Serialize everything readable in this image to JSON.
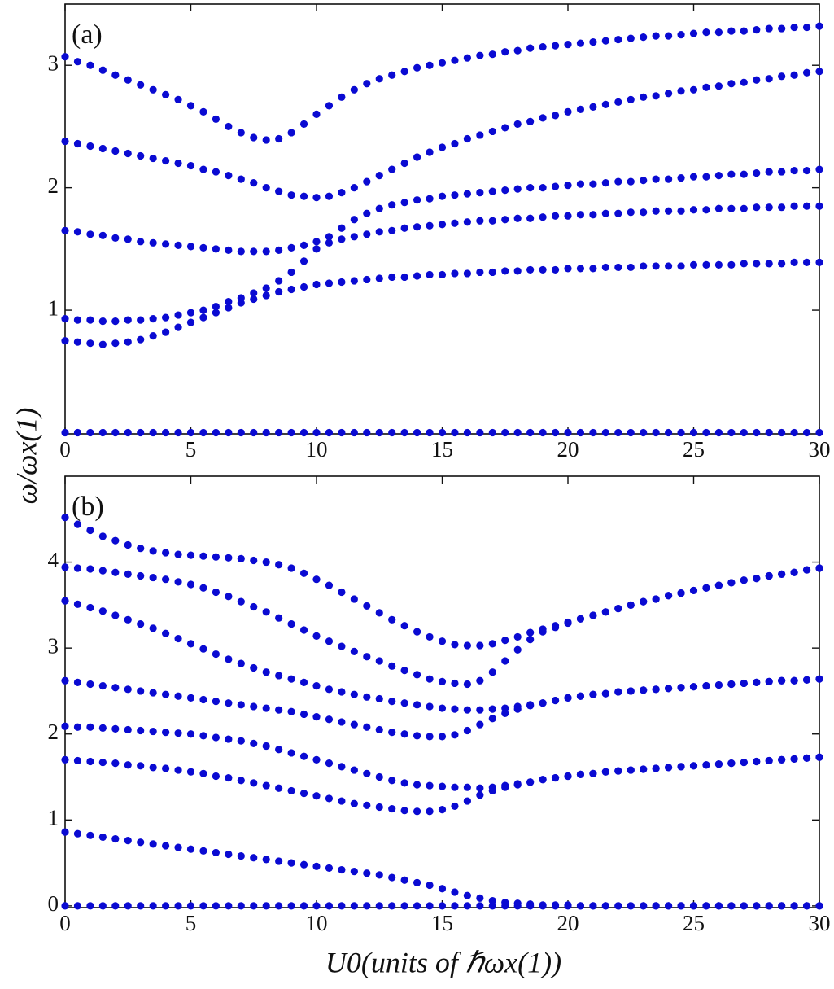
{
  "chart_data": [
    {
      "type": "scatter",
      "panel_label": "(a)",
      "ylabel": "ω/ωx(1)",
      "x": [
        0,
        0.5,
        1,
        1.5,
        2,
        2.5,
        3,
        3.5,
        4,
        4.5,
        5,
        5.5,
        6,
        6.5,
        7,
        7.5,
        8,
        8.5,
        9,
        9.5,
        10,
        10.5,
        11,
        11.5,
        12,
        12.5,
        13,
        13.5,
        14,
        14.5,
        15,
        15.5,
        16,
        16.5,
        17,
        17.5,
        18,
        18.5,
        19,
        19.5,
        20,
        20.5,
        21,
        21.5,
        22,
        22.5,
        23,
        23.5,
        24,
        24.5,
        25,
        25.5,
        26,
        26.5,
        27,
        27.5,
        28,
        28.5,
        29,
        29.5,
        30
      ],
      "series": [
        {
          "color": "#0a0ad2",
          "values": [
            0,
            0,
            0,
            0,
            0,
            0,
            0,
            0,
            0,
            0,
            0,
            0,
            0,
            0,
            0,
            0,
            0,
            0,
            0,
            0,
            0,
            0,
            0,
            0,
            0,
            0,
            0,
            0,
            0,
            0,
            0,
            0,
            0,
            0,
            0,
            0,
            0,
            0,
            0,
            0,
            0,
            0,
            0,
            0,
            0,
            0,
            0,
            0,
            0,
            0,
            0,
            0,
            0,
            0,
            0,
            0,
            0,
            0,
            0,
            0,
            0
          ]
        },
        {
          "color": "#0a0ad2",
          "values": [
            0.75,
            0.74,
            0.73,
            0.72,
            0.73,
            0.74,
            0.76,
            0.79,
            0.82,
            0.86,
            0.9,
            0.94,
            0.98,
            1.02,
            1.06,
            1.09,
            1.12,
            1.15,
            1.17,
            1.19,
            1.21,
            1.22,
            1.23,
            1.24,
            1.25,
            1.26,
            1.27,
            1.27,
            1.28,
            1.29,
            1.29,
            1.3,
            1.3,
            1.31,
            1.31,
            1.32,
            1.32,
            1.33,
            1.33,
            1.33,
            1.34,
            1.34,
            1.34,
            1.35,
            1.35,
            1.35,
            1.36,
            1.36,
            1.36,
            1.36,
            1.37,
            1.37,
            1.37,
            1.37,
            1.38,
            1.38,
            1.38,
            1.38,
            1.39,
            1.39,
            1.39
          ]
        },
        {
          "color": "#0a0ad2",
          "values": [
            0.93,
            0.92,
            0.92,
            0.91,
            0.91,
            0.92,
            0.92,
            0.93,
            0.94,
            0.96,
            0.98,
            1.0,
            1.03,
            1.07,
            1.1,
            1.14,
            1.18,
            1.24,
            1.31,
            1.4,
            1.5,
            1.55,
            1.58,
            1.6,
            1.62,
            1.64,
            1.65,
            1.67,
            1.68,
            1.69,
            1.7,
            1.71,
            1.72,
            1.73,
            1.73,
            1.74,
            1.75,
            1.75,
            1.76,
            1.77,
            1.77,
            1.78,
            1.78,
            1.79,
            1.79,
            1.8,
            1.8,
            1.81,
            1.81,
            1.81,
            1.82,
            1.82,
            1.83,
            1.83,
            1.83,
            1.84,
            1.84,
            1.84,
            1.85,
            1.85,
            1.85
          ]
        },
        {
          "color": "#0a0ad2",
          "values": [
            1.65,
            1.64,
            1.62,
            1.61,
            1.59,
            1.58,
            1.56,
            1.55,
            1.54,
            1.53,
            1.52,
            1.51,
            1.5,
            1.49,
            1.48,
            1.48,
            1.48,
            1.49,
            1.51,
            1.53,
            1.56,
            1.6,
            1.67,
            1.74,
            1.79,
            1.83,
            1.86,
            1.88,
            1.9,
            1.91,
            1.93,
            1.94,
            1.95,
            1.96,
            1.97,
            1.98,
            1.99,
            2.0,
            2.0,
            2.01,
            2.02,
            2.03,
            2.03,
            2.04,
            2.05,
            2.05,
            2.06,
            2.07,
            2.07,
            2.08,
            2.09,
            2.09,
            2.1,
            2.11,
            2.11,
            2.12,
            2.13,
            2.13,
            2.14,
            2.14,
            2.15
          ]
        },
        {
          "color": "#0a0ad2",
          "values": [
            2.38,
            2.36,
            2.34,
            2.32,
            2.3,
            2.28,
            2.26,
            2.24,
            2.22,
            2.2,
            2.18,
            2.15,
            2.13,
            2.1,
            2.07,
            2.04,
            2.0,
            1.97,
            1.94,
            1.93,
            1.92,
            1.93,
            1.96,
            2.0,
            2.05,
            2.1,
            2.15,
            2.2,
            2.25,
            2.29,
            2.33,
            2.36,
            2.4,
            2.43,
            2.46,
            2.49,
            2.52,
            2.54,
            2.57,
            2.59,
            2.62,
            2.64,
            2.66,
            2.68,
            2.7,
            2.72,
            2.74,
            2.75,
            2.77,
            2.79,
            2.8,
            2.82,
            2.83,
            2.85,
            2.86,
            2.88,
            2.89,
            2.91,
            2.92,
            2.94,
            2.95
          ]
        },
        {
          "color": "#0a0ad2",
          "values": [
            3.07,
            3.03,
            3.0,
            2.96,
            2.92,
            2.88,
            2.84,
            2.8,
            2.76,
            2.72,
            2.67,
            2.62,
            2.56,
            2.5,
            2.45,
            2.41,
            2.39,
            2.4,
            2.45,
            2.52,
            2.6,
            2.67,
            2.74,
            2.8,
            2.85,
            2.89,
            2.92,
            2.95,
            2.98,
            3.0,
            3.02,
            3.04,
            3.06,
            3.08,
            3.09,
            3.11,
            3.12,
            3.14,
            3.15,
            3.16,
            3.17,
            3.18,
            3.19,
            3.2,
            3.21,
            3.22,
            3.23,
            3.24,
            3.24,
            3.25,
            3.26,
            3.27,
            3.27,
            3.28,
            3.28,
            3.29,
            3.3,
            3.3,
            3.31,
            3.31,
            3.32
          ]
        }
      ],
      "xlim": [
        0,
        30
      ],
      "ylim": [
        -0.01,
        3.5
      ],
      "xticks": [
        0,
        5,
        10,
        15,
        20,
        25,
        30
      ],
      "yticks": [
        1,
        2,
        3
      ]
    },
    {
      "type": "scatter",
      "panel_label": "(b)",
      "xlabel": "U0(units of ℏωx(1))",
      "x": [
        0,
        0.5,
        1,
        1.5,
        2,
        2.5,
        3,
        3.5,
        4,
        4.5,
        5,
        5.5,
        6,
        6.5,
        7,
        7.5,
        8,
        8.5,
        9,
        9.5,
        10,
        10.5,
        11,
        11.5,
        12,
        12.5,
        13,
        13.5,
        14,
        14.5,
        15,
        15.5,
        16,
        16.5,
        17,
        17.5,
        18,
        18.5,
        19,
        19.5,
        20,
        20.5,
        21,
        21.5,
        22,
        22.5,
        23,
        23.5,
        24,
        24.5,
        25,
        25.5,
        26,
        26.5,
        27,
        27.5,
        28,
        28.5,
        29,
        29.5,
        30
      ],
      "series": [
        {
          "color": "#0a0ad2",
          "values": [
            0,
            0,
            0,
            0,
            0,
            0,
            0,
            0,
            0,
            0,
            0,
            0,
            0,
            0,
            0,
            0,
            0,
            0,
            0,
            0,
            0,
            0,
            0,
            0,
            0,
            0,
            0,
            0,
            0,
            0,
            0,
            0,
            0,
            0,
            0,
            0,
            0,
            0,
            0,
            0,
            0,
            0,
            0,
            0,
            0,
            0,
            0,
            0,
            0,
            0,
            0,
            0,
            0,
            0,
            0,
            0,
            0,
            0,
            0,
            0,
            0
          ]
        },
        {
          "color": "#0a0ad2",
          "values": [
            0.86,
            0.84,
            0.82,
            0.8,
            0.78,
            0.76,
            0.74,
            0.72,
            0.7,
            0.68,
            0.66,
            0.64,
            0.62,
            0.6,
            0.58,
            0.56,
            0.54,
            0.52,
            0.5,
            0.48,
            0.46,
            0.44,
            0.42,
            0.4,
            0.38,
            0.36,
            0.33,
            0.3,
            0.27,
            0.24,
            0.2,
            0.16,
            0.12,
            0.09,
            0.06,
            0.04,
            0.03,
            0.02,
            0.01,
            0.01,
            0.01,
            0,
            0,
            0,
            0,
            0,
            0,
            0,
            0,
            0,
            0,
            0,
            0,
            0,
            0,
            0,
            0,
            0,
            0,
            0,
            0
          ]
        },
        {
          "color": "#0a0ad2",
          "values": [
            1.7,
            1.69,
            1.68,
            1.67,
            1.66,
            1.64,
            1.63,
            1.61,
            1.6,
            1.58,
            1.56,
            1.54,
            1.51,
            1.49,
            1.46,
            1.43,
            1.4,
            1.37,
            1.34,
            1.31,
            1.28,
            1.25,
            1.22,
            1.19,
            1.17,
            1.15,
            1.13,
            1.11,
            1.1,
            1.1,
            1.12,
            1.16,
            1.22,
            1.29,
            1.34,
            1.38,
            1.41,
            1.44,
            1.47,
            1.49,
            1.51,
            1.53,
            1.54,
            1.56,
            1.57,
            1.58,
            1.59,
            1.6,
            1.61,
            1.62,
            1.63,
            1.64,
            1.65,
            1.66,
            1.67,
            1.68,
            1.69,
            1.7,
            1.71,
            1.72,
            1.73
          ]
        },
        {
          "color": "#0a0ad2",
          "values": [
            2.09,
            2.08,
            2.08,
            2.07,
            2.06,
            2.05,
            2.04,
            2.03,
            2.02,
            2.01,
            2.0,
            1.98,
            1.96,
            1.94,
            1.92,
            1.89,
            1.86,
            1.82,
            1.78,
            1.74,
            1.7,
            1.66,
            1.62,
            1.58,
            1.54,
            1.5,
            1.46,
            1.43,
            1.41,
            1.4,
            1.39,
            1.38,
            1.38,
            1.37,
            1.38,
            1.4,
            1.42,
            1.44,
            1.47,
            1.49,
            1.51,
            1.53,
            1.54,
            1.56,
            1.57,
            1.58,
            1.59,
            1.6,
            1.61,
            1.62,
            1.63,
            1.64,
            1.65,
            1.66,
            1.67,
            1.68,
            1.69,
            1.7,
            1.71,
            1.72,
            1.73
          ]
        },
        {
          "color": "#0a0ad2",
          "values": [
            2.62,
            2.6,
            2.58,
            2.56,
            2.54,
            2.52,
            2.5,
            2.48,
            2.46,
            2.44,
            2.42,
            2.4,
            2.38,
            2.36,
            2.34,
            2.32,
            2.3,
            2.28,
            2.26,
            2.23,
            2.2,
            2.17,
            2.14,
            2.11,
            2.08,
            2.05,
            2.02,
            2.0,
            1.98,
            1.97,
            1.97,
            1.99,
            2.04,
            2.11,
            2.18,
            2.24,
            2.29,
            2.33,
            2.36,
            2.39,
            2.42,
            2.44,
            2.46,
            2.47,
            2.49,
            2.5,
            2.51,
            2.52,
            2.53,
            2.54,
            2.55,
            2.56,
            2.57,
            2.58,
            2.59,
            2.6,
            2.61,
            2.62,
            2.62,
            2.63,
            2.64
          ]
        },
        {
          "color": "#0a0ad2",
          "values": [
            3.55,
            3.51,
            3.47,
            3.43,
            3.38,
            3.33,
            3.28,
            3.23,
            3.17,
            3.11,
            3.05,
            2.99,
            2.93,
            2.87,
            2.82,
            2.77,
            2.72,
            2.68,
            2.64,
            2.6,
            2.56,
            2.52,
            2.49,
            2.46,
            2.43,
            2.41,
            2.38,
            2.36,
            2.34,
            2.32,
            2.3,
            2.29,
            2.28,
            2.28,
            2.29,
            2.3,
            2.32,
            2.34,
            2.36,
            2.39,
            2.42,
            2.44,
            2.46,
            2.47,
            2.49,
            2.5,
            2.51,
            2.52,
            2.53,
            2.54,
            2.55,
            2.56,
            2.57,
            2.58,
            2.59,
            2.6,
            2.61,
            2.62,
            2.62,
            2.63,
            2.64
          ]
        },
        {
          "color": "#0a0ad2",
          "values": [
            3.94,
            3.93,
            3.92,
            3.9,
            3.88,
            3.86,
            3.84,
            3.82,
            3.8,
            3.77,
            3.74,
            3.7,
            3.65,
            3.6,
            3.54,
            3.48,
            3.42,
            3.35,
            3.28,
            3.21,
            3.14,
            3.08,
            3.02,
            2.96,
            2.9,
            2.85,
            2.79,
            2.74,
            2.69,
            2.64,
            2.61,
            2.59,
            2.58,
            2.62,
            2.72,
            2.85,
            2.98,
            3.1,
            3.19,
            3.24,
            3.29,
            3.34,
            3.38,
            3.42,
            3.46,
            3.5,
            3.54,
            3.57,
            3.61,
            3.64,
            3.67,
            3.7,
            3.73,
            3.76,
            3.79,
            3.81,
            3.84,
            3.86,
            3.88,
            3.91,
            3.93
          ]
        },
        {
          "color": "#0a0ad2",
          "values": [
            4.52,
            4.44,
            4.37,
            4.3,
            4.25,
            4.2,
            4.16,
            4.13,
            4.11,
            4.09,
            4.08,
            4.07,
            4.06,
            4.05,
            4.04,
            4.02,
            4.0,
            3.97,
            3.93,
            3.87,
            3.8,
            3.73,
            3.65,
            3.57,
            3.49,
            3.41,
            3.33,
            3.26,
            3.19,
            3.13,
            3.08,
            3.04,
            3.03,
            3.03,
            3.05,
            3.09,
            3.13,
            3.18,
            3.22,
            3.26,
            3.3,
            3.34,
            3.38,
            3.42,
            3.46,
            3.5,
            3.54,
            3.57,
            3.61,
            3.64,
            3.67,
            3.7,
            3.73,
            3.76,
            3.79,
            3.81,
            3.84,
            3.86,
            3.88,
            3.91,
            3.93
          ]
        }
      ],
      "xlim": [
        0,
        30
      ],
      "ylim": [
        -0.02,
        5.0
      ],
      "xticks": [
        0,
        5,
        10,
        15,
        20,
        25,
        30
      ],
      "yticks": [
        0,
        1,
        2,
        3,
        4
      ]
    }
  ]
}
